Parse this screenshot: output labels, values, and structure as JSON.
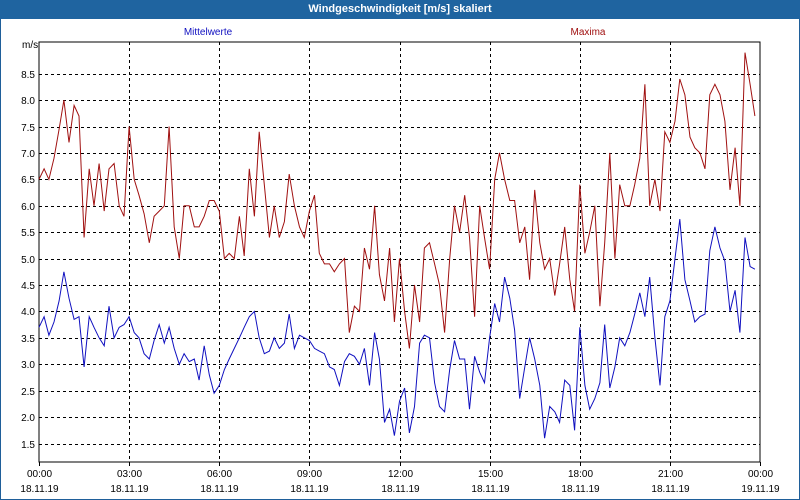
{
  "window": {
    "title": "Windgeschwindigkeit [m/s] skaliert"
  },
  "chart_data": {
    "type": "line",
    "title": "Windgeschwindigkeit [m/s] skaliert",
    "ylabel": "m/s",
    "xlabel": "",
    "ylim": [
      1.15,
      9.1
    ],
    "xlim": [
      0,
      24
    ],
    "grid": true,
    "yticks": [
      1.5,
      2.0,
      2.5,
      3.0,
      3.5,
      4.0,
      4.5,
      5.0,
      5.5,
      6.0,
      6.5,
      7.0,
      7.5,
      8.0,
      8.5
    ],
    "ytick_labels": [
      "1.5",
      "2.0",
      "2.5",
      "3.0",
      "3.5",
      "4.0",
      "4.5",
      "5.0",
      "5.5",
      "6.0",
      "6.5",
      "7.0",
      "7.5",
      "8.0",
      "8.5"
    ],
    "xticks": [
      {
        "time": "00:00",
        "date": "18.11.19"
      },
      {
        "time": "03:00",
        "date": "18.11.19"
      },
      {
        "time": "06:00",
        "date": "18.11.19"
      },
      {
        "time": "09:00",
        "date": "18.11.19"
      },
      {
        "time": "12:00",
        "date": "18.11.19"
      },
      {
        "time": "15:00",
        "date": "18.11.19"
      },
      {
        "time": "18:00",
        "date": "18.11.19"
      },
      {
        "time": "21:00",
        "date": "18.11.19"
      },
      {
        "time": "00:00",
        "date": "19.11.19"
      }
    ],
    "series": [
      {
        "name": "Mittelwerte",
        "color": "#1010c0",
        "points": [
          [
            0.0,
            3.7
          ],
          [
            0.17,
            3.9
          ],
          [
            0.33,
            3.55
          ],
          [
            0.5,
            3.8
          ],
          [
            0.67,
            4.2
          ],
          [
            0.83,
            4.75
          ],
          [
            1.0,
            4.25
          ],
          [
            1.17,
            3.85
          ],
          [
            1.33,
            3.9
          ],
          [
            1.5,
            2.95
          ],
          [
            1.67,
            3.9
          ],
          [
            1.83,
            3.7
          ],
          [
            2.0,
            3.5
          ],
          [
            2.17,
            3.35
          ],
          [
            2.33,
            4.1
          ],
          [
            2.5,
            3.5
          ],
          [
            2.67,
            3.7
          ],
          [
            2.83,
            3.75
          ],
          [
            3.0,
            3.9
          ],
          [
            3.17,
            3.6
          ],
          [
            3.33,
            3.5
          ],
          [
            3.5,
            3.2
          ],
          [
            3.67,
            3.1
          ],
          [
            3.83,
            3.45
          ],
          [
            4.0,
            3.75
          ],
          [
            4.17,
            3.4
          ],
          [
            4.33,
            3.7
          ],
          [
            4.5,
            3.3
          ],
          [
            4.67,
            3.0
          ],
          [
            4.83,
            3.2
          ],
          [
            5.0,
            3.05
          ],
          [
            5.17,
            3.1
          ],
          [
            5.33,
            2.7
          ],
          [
            5.5,
            3.35
          ],
          [
            5.67,
            2.8
          ],
          [
            5.83,
            2.45
          ],
          [
            6.0,
            2.6
          ],
          [
            6.17,
            2.9
          ],
          [
            6.33,
            3.1
          ],
          [
            6.5,
            3.3
          ],
          [
            6.67,
            3.5
          ],
          [
            6.83,
            3.7
          ],
          [
            7.0,
            3.9
          ],
          [
            7.17,
            4.0
          ],
          [
            7.33,
            3.5
          ],
          [
            7.5,
            3.2
          ],
          [
            7.67,
            3.25
          ],
          [
            7.83,
            3.5
          ],
          [
            8.0,
            3.3
          ],
          [
            8.17,
            3.4
          ],
          [
            8.33,
            3.95
          ],
          [
            8.5,
            3.3
          ],
          [
            8.67,
            3.55
          ],
          [
            8.83,
            3.5
          ],
          [
            9.0,
            3.45
          ],
          [
            9.17,
            3.3
          ],
          [
            9.33,
            3.25
          ],
          [
            9.5,
            3.2
          ],
          [
            9.67,
            2.95
          ],
          [
            9.83,
            2.9
          ],
          [
            10.0,
            2.6
          ],
          [
            10.17,
            3.05
          ],
          [
            10.33,
            3.2
          ],
          [
            10.5,
            3.15
          ],
          [
            10.67,
            3.0
          ],
          [
            10.83,
            3.3
          ],
          [
            11.0,
            2.6
          ],
          [
            11.17,
            3.6
          ],
          [
            11.33,
            3.1
          ],
          [
            11.5,
            1.9
          ],
          [
            11.67,
            2.15
          ],
          [
            11.83,
            1.65
          ],
          [
            12.0,
            2.3
          ],
          [
            12.17,
            2.55
          ],
          [
            12.33,
            1.7
          ],
          [
            12.5,
            2.2
          ],
          [
            12.67,
            3.4
          ],
          [
            12.83,
            3.55
          ],
          [
            13.0,
            3.5
          ],
          [
            13.17,
            2.65
          ],
          [
            13.33,
            2.2
          ],
          [
            13.5,
            2.1
          ],
          [
            13.67,
            2.9
          ],
          [
            13.83,
            3.45
          ],
          [
            14.0,
            3.1
          ],
          [
            14.17,
            3.1
          ],
          [
            14.33,
            2.15
          ],
          [
            14.5,
            3.15
          ],
          [
            14.67,
            2.85
          ],
          [
            14.83,
            2.65
          ],
          [
            15.0,
            3.5
          ],
          [
            15.17,
            4.15
          ],
          [
            15.33,
            3.8
          ],
          [
            15.5,
            4.65
          ],
          [
            15.67,
            4.25
          ],
          [
            15.83,
            3.65
          ],
          [
            16.0,
            2.35
          ],
          [
            16.17,
            2.95
          ],
          [
            16.33,
            3.5
          ],
          [
            16.5,
            3.1
          ],
          [
            16.67,
            2.6
          ],
          [
            16.83,
            1.6
          ],
          [
            17.0,
            2.2
          ],
          [
            17.17,
            2.1
          ],
          [
            17.33,
            1.9
          ],
          [
            17.5,
            2.7
          ],
          [
            17.67,
            2.6
          ],
          [
            17.83,
            1.75
          ],
          [
            18.0,
            3.7
          ],
          [
            18.17,
            2.6
          ],
          [
            18.33,
            2.15
          ],
          [
            18.5,
            2.35
          ],
          [
            18.67,
            2.65
          ],
          [
            18.83,
            3.75
          ],
          [
            19.0,
            2.55
          ],
          [
            19.17,
            2.95
          ],
          [
            19.33,
            3.5
          ],
          [
            19.5,
            3.35
          ],
          [
            19.67,
            3.6
          ],
          [
            19.83,
            3.95
          ],
          [
            20.0,
            4.35
          ],
          [
            20.17,
            3.9
          ],
          [
            20.33,
            4.65
          ],
          [
            20.5,
            3.5
          ],
          [
            20.67,
            2.6
          ],
          [
            20.83,
            3.9
          ],
          [
            21.0,
            4.2
          ],
          [
            21.17,
            5.0
          ],
          [
            21.33,
            5.75
          ],
          [
            21.5,
            4.6
          ],
          [
            21.67,
            4.2
          ],
          [
            21.83,
            3.8
          ],
          [
            22.0,
            3.9
          ],
          [
            22.17,
            3.95
          ],
          [
            22.33,
            5.15
          ],
          [
            22.5,
            5.6
          ],
          [
            22.67,
            5.2
          ],
          [
            22.83,
            4.95
          ],
          [
            23.0,
            4.0
          ],
          [
            23.17,
            4.4
          ],
          [
            23.33,
            3.6
          ],
          [
            23.5,
            5.4
          ],
          [
            23.67,
            4.85
          ],
          [
            23.83,
            4.8
          ]
        ]
      },
      {
        "name": "Maxima",
        "color": "#a01010",
        "points": [
          [
            0.0,
            6.5
          ],
          [
            0.17,
            6.7
          ],
          [
            0.33,
            6.5
          ],
          [
            0.5,
            6.9
          ],
          [
            0.67,
            7.45
          ],
          [
            0.83,
            8.0
          ],
          [
            1.0,
            7.2
          ],
          [
            1.17,
            7.9
          ],
          [
            1.33,
            7.7
          ],
          [
            1.5,
            5.4
          ],
          [
            1.67,
            6.7
          ],
          [
            1.83,
            6.0
          ],
          [
            2.0,
            6.8
          ],
          [
            2.17,
            5.9
          ],
          [
            2.33,
            6.7
          ],
          [
            2.5,
            6.8
          ],
          [
            2.67,
            6.0
          ],
          [
            2.83,
            5.8
          ],
          [
            3.0,
            7.5
          ],
          [
            3.17,
            6.5
          ],
          [
            3.33,
            6.2
          ],
          [
            3.5,
            5.85
          ],
          [
            3.67,
            5.3
          ],
          [
            3.83,
            5.8
          ],
          [
            4.0,
            5.9
          ],
          [
            4.17,
            6.0
          ],
          [
            4.33,
            7.5
          ],
          [
            4.5,
            5.6
          ],
          [
            4.67,
            5.0
          ],
          [
            4.83,
            6.0
          ],
          [
            5.0,
            6.0
          ],
          [
            5.17,
            5.6
          ],
          [
            5.33,
            5.6
          ],
          [
            5.5,
            5.8
          ],
          [
            5.67,
            6.1
          ],
          [
            5.83,
            6.1
          ],
          [
            6.0,
            5.9
          ],
          [
            6.17,
            5.0
          ],
          [
            6.33,
            5.1
          ],
          [
            6.5,
            5.0
          ],
          [
            6.67,
            5.8
          ],
          [
            6.83,
            5.05
          ],
          [
            7.0,
            6.7
          ],
          [
            7.17,
            5.8
          ],
          [
            7.33,
            7.4
          ],
          [
            7.5,
            6.4
          ],
          [
            7.67,
            5.4
          ],
          [
            7.83,
            6.0
          ],
          [
            8.0,
            5.4
          ],
          [
            8.17,
            5.7
          ],
          [
            8.33,
            6.6
          ],
          [
            8.5,
            6.0
          ],
          [
            8.67,
            5.6
          ],
          [
            8.83,
            5.4
          ],
          [
            9.0,
            5.9
          ],
          [
            9.17,
            6.2
          ],
          [
            9.33,
            5.1
          ],
          [
            9.5,
            4.9
          ],
          [
            9.67,
            4.9
          ],
          [
            9.83,
            4.75
          ],
          [
            10.0,
            4.9
          ],
          [
            10.17,
            5.0
          ],
          [
            10.33,
            3.6
          ],
          [
            10.5,
            4.1
          ],
          [
            10.67,
            4.0
          ],
          [
            10.83,
            5.2
          ],
          [
            11.0,
            4.8
          ],
          [
            11.17,
            6.0
          ],
          [
            11.33,
            4.7
          ],
          [
            11.5,
            4.2
          ],
          [
            11.67,
            5.2
          ],
          [
            11.83,
            3.8
          ],
          [
            12.0,
            5.0
          ],
          [
            12.17,
            4.0
          ],
          [
            12.33,
            3.3
          ],
          [
            12.5,
            4.5
          ],
          [
            12.67,
            3.8
          ],
          [
            12.83,
            5.2
          ],
          [
            13.0,
            5.3
          ],
          [
            13.17,
            4.9
          ],
          [
            13.33,
            4.5
          ],
          [
            13.5,
            3.6
          ],
          [
            13.67,
            5.0
          ],
          [
            13.83,
            6.0
          ],
          [
            14.0,
            5.5
          ],
          [
            14.17,
            6.2
          ],
          [
            14.33,
            5.4
          ],
          [
            14.5,
            3.9
          ],
          [
            14.67,
            6.0
          ],
          [
            14.83,
            5.4
          ],
          [
            15.0,
            4.8
          ],
          [
            15.17,
            6.5
          ],
          [
            15.33,
            7.0
          ],
          [
            15.5,
            6.5
          ],
          [
            15.67,
            6.1
          ],
          [
            15.83,
            6.1
          ],
          [
            16.0,
            5.3
          ],
          [
            16.17,
            5.6
          ],
          [
            16.33,
            4.6
          ],
          [
            16.5,
            6.3
          ],
          [
            16.67,
            5.3
          ],
          [
            16.83,
            4.8
          ],
          [
            17.0,
            5.0
          ],
          [
            17.17,
            4.3
          ],
          [
            17.33,
            4.9
          ],
          [
            17.5,
            5.6
          ],
          [
            17.67,
            4.6
          ],
          [
            17.83,
            4.0
          ],
          [
            18.0,
            6.4
          ],
          [
            18.17,
            5.1
          ],
          [
            18.33,
            5.5
          ],
          [
            18.5,
            6.0
          ],
          [
            18.67,
            4.1
          ],
          [
            18.83,
            5.3
          ],
          [
            19.0,
            7.0
          ],
          [
            19.17,
            5.0
          ],
          [
            19.33,
            6.4
          ],
          [
            19.5,
            6.0
          ],
          [
            19.67,
            6.0
          ],
          [
            19.83,
            6.4
          ],
          [
            20.0,
            6.9
          ],
          [
            20.17,
            8.3
          ],
          [
            20.33,
            6.0
          ],
          [
            20.5,
            6.5
          ],
          [
            20.67,
            5.9
          ],
          [
            20.83,
            7.4
          ],
          [
            21.0,
            7.2
          ],
          [
            21.17,
            7.6
          ],
          [
            21.33,
            8.4
          ],
          [
            21.5,
            8.1
          ],
          [
            21.67,
            7.3
          ],
          [
            21.83,
            7.1
          ],
          [
            22.0,
            7.0
          ],
          [
            22.17,
            6.7
          ],
          [
            22.33,
            8.1
          ],
          [
            22.5,
            8.3
          ],
          [
            22.67,
            8.1
          ],
          [
            22.83,
            7.6
          ],
          [
            23.0,
            6.3
          ],
          [
            23.17,
            7.1
          ],
          [
            23.33,
            6.0
          ],
          [
            23.5,
            8.9
          ],
          [
            23.67,
            8.3
          ],
          [
            23.83,
            7.7
          ]
        ]
      }
    ]
  }
}
